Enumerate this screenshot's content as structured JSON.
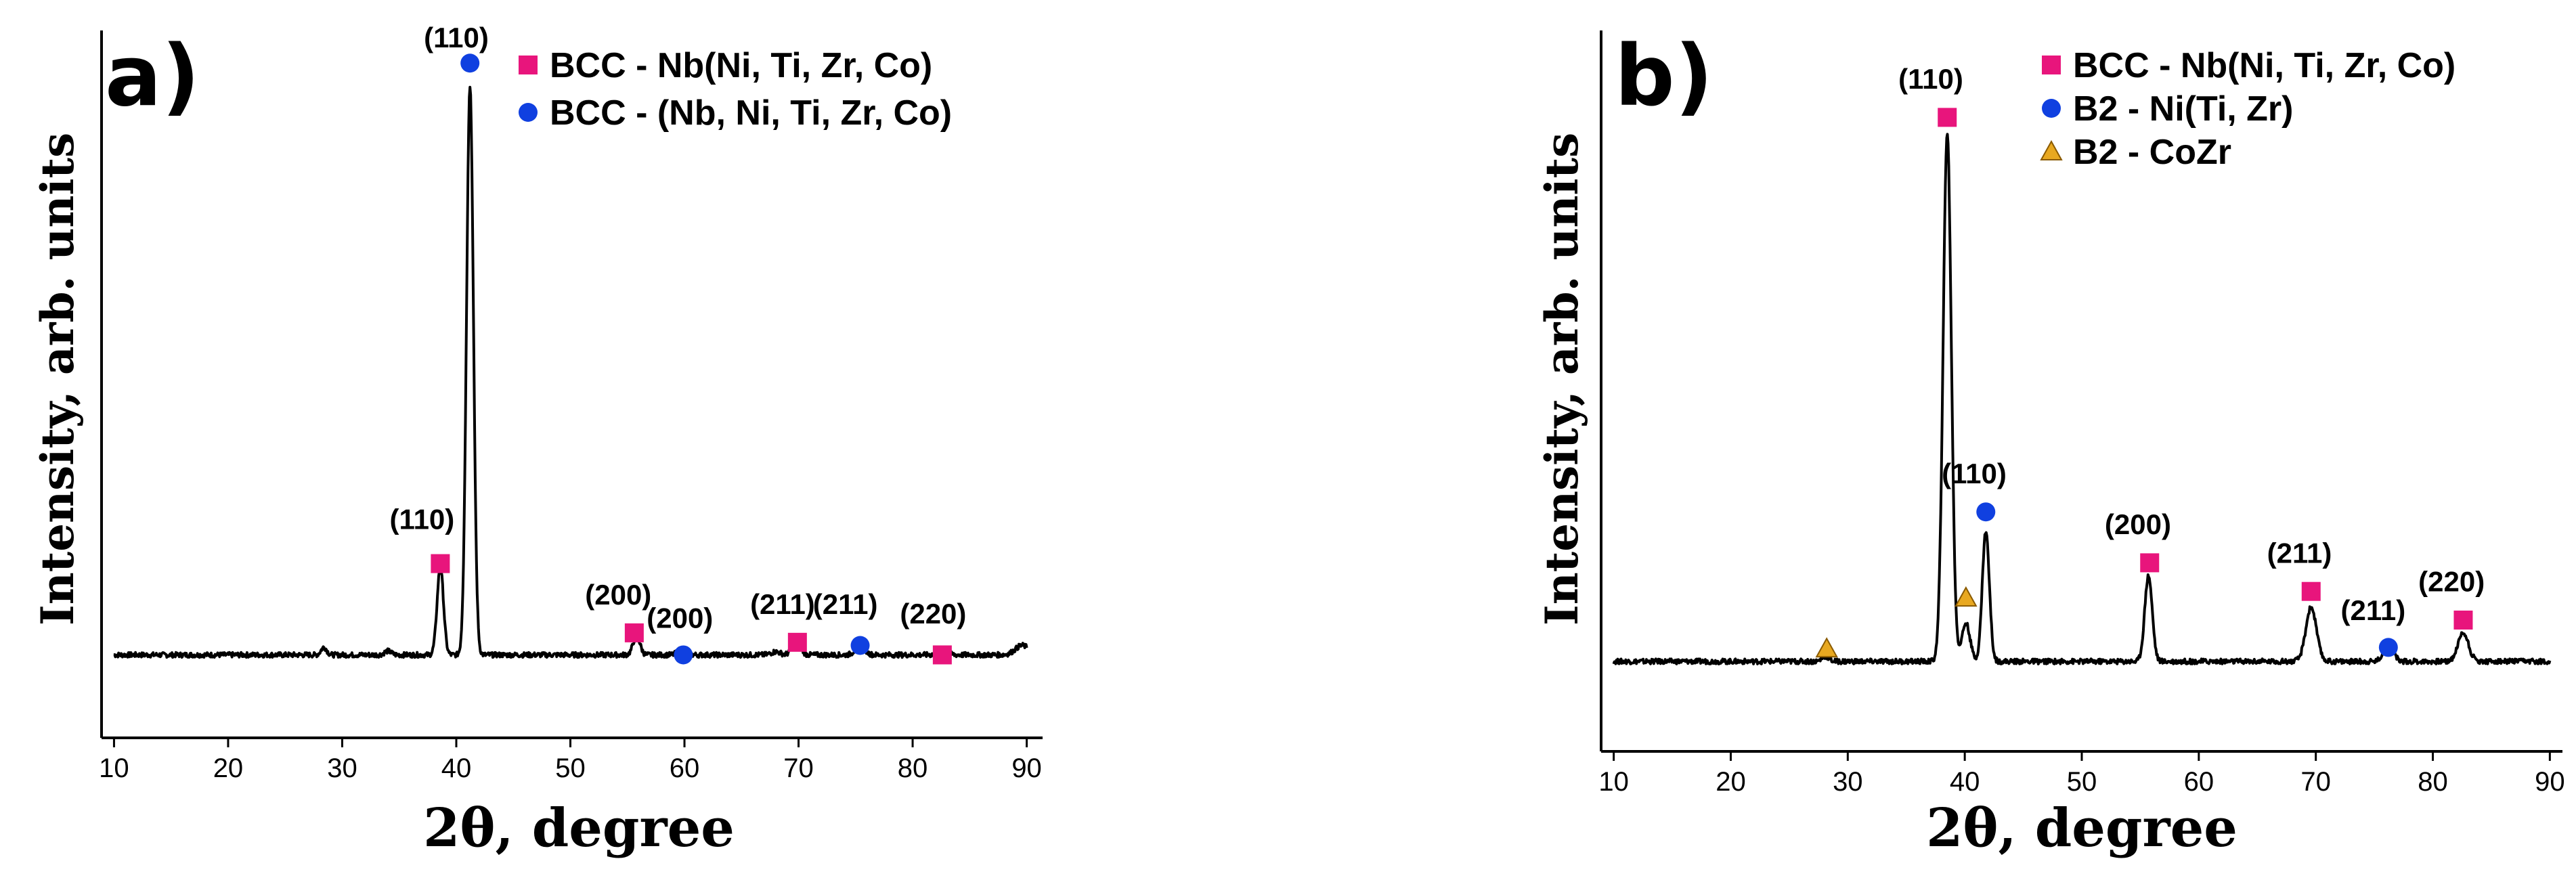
{
  "chart_data": [
    {
      "type": "line",
      "panel": "a)",
      "xlabel": "2θ, degree",
      "ylabel": "Intensity, arb. units",
      "xlim": [
        9.5,
        90.5
      ],
      "ylim": [
        0,
        1
      ],
      "xticks": [
        10,
        20,
        30,
        40,
        50,
        60,
        70,
        80,
        90
      ],
      "grid": false,
      "legend_position": "top-right",
      "colors": {
        "square": "#e8157c",
        "circle": "#1040e0",
        "triangle": "#e8a820",
        "line": "#000000"
      },
      "legend": [
        {
          "marker": "square",
          "label": "BCC - Nb(Ni, Ti, Zr, Co)"
        },
        {
          "marker": "circle",
          "label": "BCC - (Nb, Ni, Ti, Zr, Co)"
        }
      ],
      "baseline": 0.035,
      "peaks": [
        {
          "x": 28.4,
          "h": 0.012,
          "w": 0.25
        },
        {
          "x": 34.0,
          "h": 0.006,
          "w": 0.3
        },
        {
          "x": 38.6,
          "h": 0.14,
          "w": 0.28
        },
        {
          "x": 41.2,
          "h": 0.905,
          "w": 0.3
        },
        {
          "x": 55.8,
          "h": 0.03,
          "w": 0.3
        },
        {
          "x": 59.8,
          "h": 0.01,
          "w": 0.35
        },
        {
          "x": 68.0,
          "h": 0.005,
          "w": 0.4
        },
        {
          "x": 69.8,
          "h": 0.025,
          "w": 0.35
        },
        {
          "x": 75.4,
          "h": 0.016,
          "w": 0.4
        },
        {
          "x": 82.6,
          "h": 0.008,
          "w": 0.4
        },
        {
          "x": 89.6,
          "h": 0.015,
          "w": 0.6
        }
      ],
      "annotations": [
        {
          "label": "(110)",
          "marker": "square",
          "x": 38.6,
          "y": 0.18,
          "lx": 37.0,
          "ly": 0.235
        },
        {
          "label": "(110)",
          "marker": "circle",
          "x": 41.2,
          "y": 0.975,
          "lx": 40.0,
          "ly": 1.0
        },
        {
          "label": "(200)",
          "marker": "square",
          "x": 55.6,
          "y": 0.07,
          "lx": 54.2,
          "ly": 0.115
        },
        {
          "label": "(200)",
          "marker": "circle",
          "x": 59.9,
          "y": 0.035,
          "lx": 59.6,
          "ly": 0.078
        },
        {
          "label": "(211)",
          "marker": "square",
          "x": 69.9,
          "y": 0.055,
          "lx": 68.6,
          "ly": 0.1
        },
        {
          "label": "(211)",
          "marker": "circle",
          "x": 75.4,
          "y": 0.05,
          "lx": 74.1,
          "ly": 0.1
        },
        {
          "label": "(220)",
          "marker": "square",
          "x": 82.6,
          "y": 0.035,
          "lx": 81.8,
          "ly": 0.085
        }
      ]
    },
    {
      "type": "line",
      "panel": "b)",
      "xlabel": "2θ, degree",
      "ylabel": "Intensity, arb. units",
      "xlim": [
        9.5,
        90.5
      ],
      "ylim": [
        0,
        1
      ],
      "xticks": [
        10,
        20,
        30,
        40,
        50,
        60,
        70,
        80,
        90
      ],
      "grid": false,
      "legend_position": "top-right",
      "colors": {
        "square": "#e8157c",
        "circle": "#1040e0",
        "triangle": "#e8a820",
        "line": "#000000"
      },
      "legend": [
        {
          "marker": "square",
          "label": "BCC - Nb(Ni, Ti, Zr, Co)"
        },
        {
          "marker": "circle",
          "label": "B2 - Ni(Ti, Zr)"
        },
        {
          "marker": "triangle",
          "label": "B2 - CoZr"
        }
      ],
      "baseline": 0.035,
      "peaks": [
        {
          "x": 28.1,
          "h": 0.008,
          "w": 0.3
        },
        {
          "x": 38.5,
          "h": 0.83,
          "w": 0.35
        },
        {
          "x": 40.1,
          "h": 0.06,
          "w": 0.35
        },
        {
          "x": 41.8,
          "h": 0.205,
          "w": 0.3
        },
        {
          "x": 55.7,
          "h": 0.135,
          "w": 0.32
        },
        {
          "x": 69.6,
          "h": 0.085,
          "w": 0.45
        },
        {
          "x": 76.2,
          "h": 0.03,
          "w": 0.4
        },
        {
          "x": 82.6,
          "h": 0.045,
          "w": 0.45
        }
      ],
      "annotations": [
        {
          "label": "",
          "marker": "triangle",
          "x": 28.2,
          "y": 0.055,
          "lx": 0,
          "ly": 0
        },
        {
          "label": "(110)",
          "marker": "square",
          "x": 38.5,
          "y": 0.89,
          "lx": 37.1,
          "ly": 0.935
        },
        {
          "label": "",
          "marker": "triangle",
          "x": 40.1,
          "y": 0.135,
          "lx": 0,
          "ly": 0
        },
        {
          "label": "(110)",
          "marker": "circle",
          "x": 41.8,
          "y": 0.27,
          "lx": 40.8,
          "ly": 0.315
        },
        {
          "label": "(200)",
          "marker": "square",
          "x": 55.8,
          "y": 0.19,
          "lx": 54.8,
          "ly": 0.235
        },
        {
          "label": "(211)",
          "marker": "square",
          "x": 69.6,
          "y": 0.145,
          "lx": 68.6,
          "ly": 0.19
        },
        {
          "label": "(211)",
          "marker": "circle",
          "x": 76.2,
          "y": 0.057,
          "lx": 74.9,
          "ly": 0.1
        },
        {
          "label": "(220)",
          "marker": "square",
          "x": 82.6,
          "y": 0.1,
          "lx": 81.6,
          "ly": 0.145
        }
      ]
    }
  ]
}
